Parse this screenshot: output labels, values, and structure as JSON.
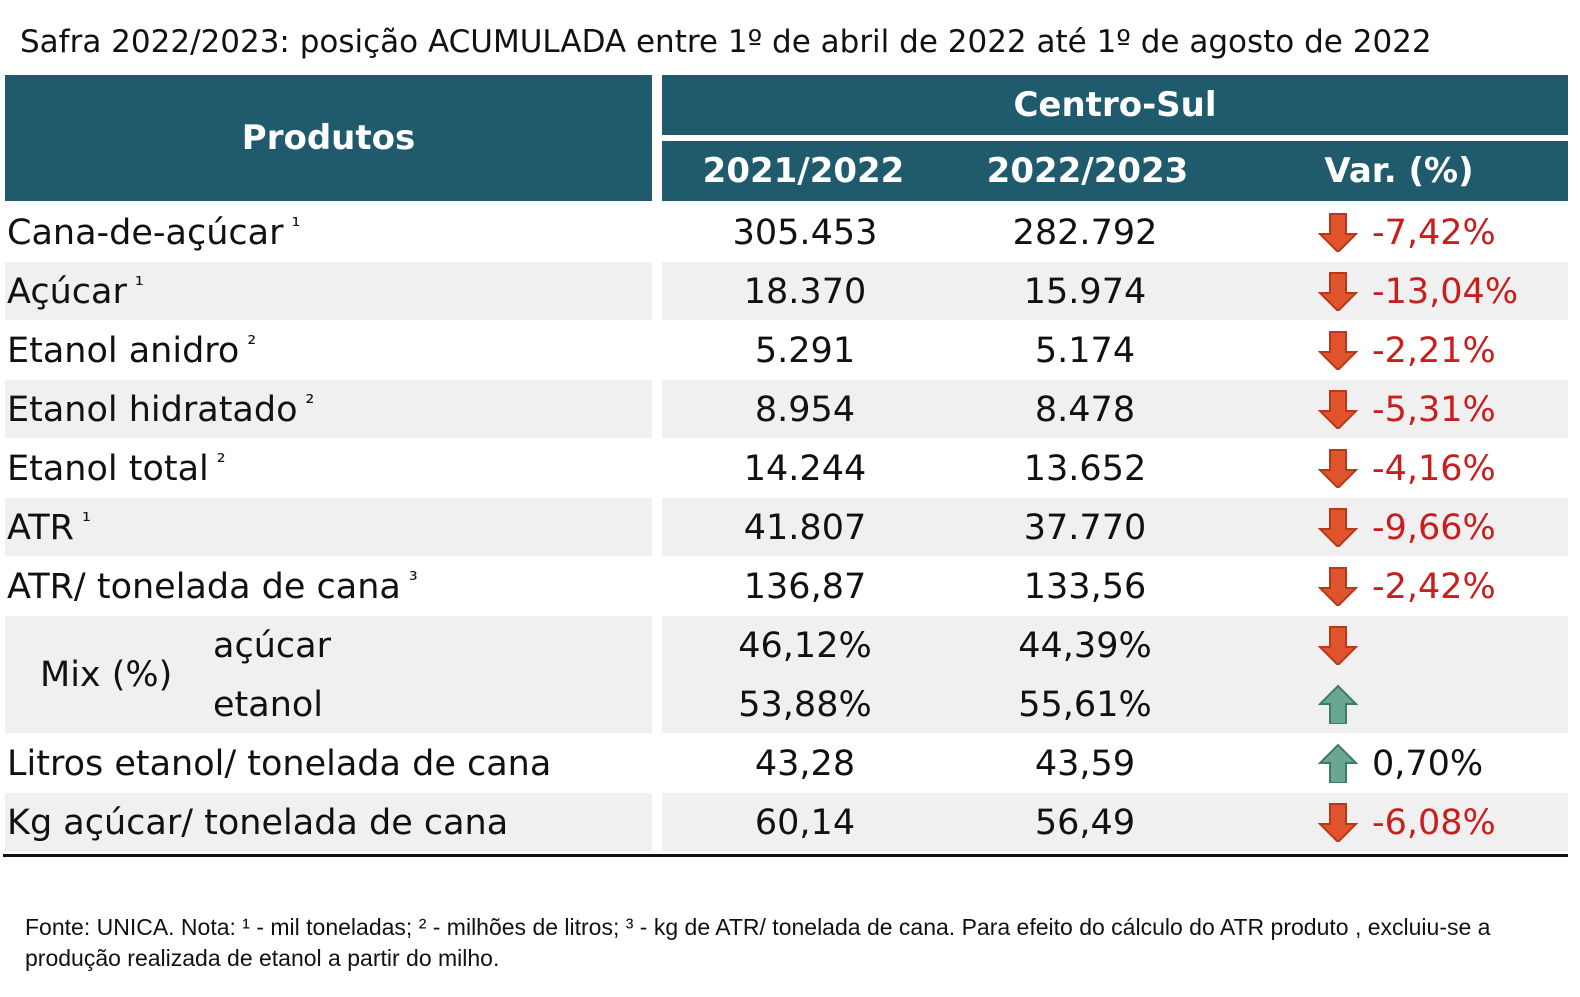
{
  "title": "Safra 2022/2023: posição ACUMULADA entre 1º de abril de 2022 até 1º de agosto de 2022",
  "header": {
    "products": "Produtos",
    "region": "Centro-Sul",
    "columns": [
      "2021/2022",
      "2022/2023",
      "Var. (%)"
    ]
  },
  "rows": [
    {
      "label": "Cana-de-açúcar",
      "note": "¹",
      "values": [
        "305.453",
        "282.792"
      ],
      "var": "-7,42%",
      "trend": "down"
    },
    {
      "label": "Açúcar",
      "note": "¹",
      "values": [
        "18.370",
        "15.974"
      ],
      "var": "-13,04%",
      "trend": "down"
    },
    {
      "label": "Etanol anidro",
      "note": "²",
      "values": [
        "5.291",
        "5.174"
      ],
      "var": "-2,21%",
      "trend": "down"
    },
    {
      "label": "Etanol hidratado",
      "note": "²",
      "values": [
        "8.954",
        "8.478"
      ],
      "var": "-5,31%",
      "trend": "down"
    },
    {
      "label": "Etanol total",
      "note": "²",
      "values": [
        "14.244",
        "13.652"
      ],
      "var": "-4,16%",
      "trend": "down"
    },
    {
      "label": "ATR",
      "note": "¹",
      "values": [
        "41.807",
        "37.770"
      ],
      "var": "-9,66%",
      "trend": "down"
    },
    {
      "label": "ATR/ tonelada de cana",
      "note": "³",
      "values": [
        "136,87",
        "133,56"
      ],
      "var": "-2,42%",
      "trend": "down"
    },
    {
      "label": "Mix (%)",
      "parts": [
        {
          "label": "açúcar",
          "values": [
            "46,12%",
            "44,39%"
          ],
          "trend": "down"
        },
        {
          "label": "etanol",
          "values": [
            "53,88%",
            "55,61%"
          ],
          "trend": "up"
        }
      ]
    },
    {
      "label": "Litros etanol/ tonelada de cana",
      "values": [
        "43,28",
        "43,59"
      ],
      "var": "0,70%",
      "trend": "up"
    },
    {
      "label": "Kg açúcar/ tonelada de cana",
      "values": [
        "60,14",
        "56,49"
      ],
      "var": "-6,08%",
      "trend": "down"
    }
  ],
  "footnote": "Fonte: UNICA. Nota: ¹ - mil toneladas; ² - milhões de litros; ³ - kg de ATR/ tonelada de cana. Para efeito do cálculo do ATR produto , excluiu-se a produção realizada de etanol a partir do milho."
}
